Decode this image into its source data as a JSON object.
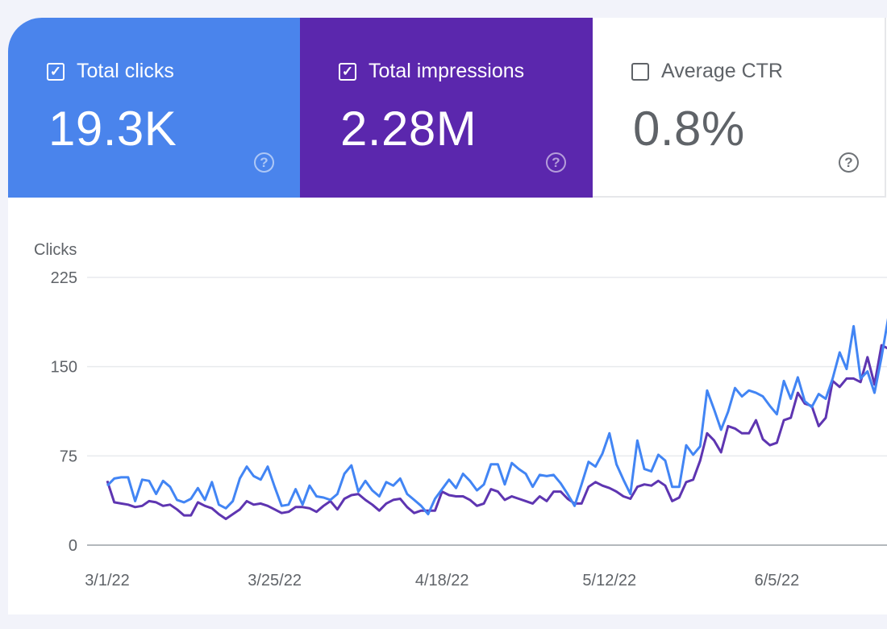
{
  "metrics": [
    {
      "label": "Total clicks",
      "value": "19.3K",
      "checked": true,
      "color": "#4a84ec",
      "icon": "help-icon"
    },
    {
      "label": "Total impressions",
      "value": "2.28M",
      "checked": true,
      "color": "#5b27ad",
      "icon": "help-icon"
    },
    {
      "label": "Average CTR",
      "value": "0.8%",
      "checked": false,
      "color": "#ffffff",
      "icon": "help-icon"
    }
  ],
  "chart_data": {
    "type": "line",
    "ylabel": "Clicks",
    "ylim": [
      0,
      225
    ],
    "yticks": [
      "225",
      "150",
      "75",
      "0"
    ],
    "ytick_values": [
      225,
      150,
      75,
      0
    ],
    "xticks": [
      "3/1/22",
      "3/25/22",
      "4/18/22",
      "5/12/22",
      "6/5/22"
    ],
    "x_start": "2022-03-01",
    "x_interval": "daily",
    "grid": true,
    "series": [
      {
        "metric": "Total clicks",
        "color": "#4285f4",
        "values": [
          50,
          56,
          57,
          57,
          37,
          55,
          54,
          43,
          54,
          49,
          38,
          36,
          39,
          48,
          38,
          53,
          34,
          31,
          37,
          56,
          66,
          58,
          55,
          66,
          49,
          33,
          34,
          47,
          34,
          50,
          41,
          40,
          38,
          43,
          60,
          67,
          45,
          54,
          46,
          41,
          53,
          50,
          56,
          43,
          38,
          33,
          26,
          39,
          47,
          55,
          48,
          60,
          54,
          46,
          51,
          68,
          68,
          51,
          69,
          64,
          60,
          49,
          59,
          58,
          59,
          52,
          43,
          33,
          51,
          70,
          66,
          77,
          94,
          68,
          55,
          43,
          88,
          64,
          62,
          76,
          71,
          49,
          49,
          84,
          76,
          83,
          130,
          114,
          97,
          112,
          132,
          125,
          130,
          128,
          125,
          117,
          110,
          138,
          123,
          141,
          121,
          116,
          127,
          123,
          140,
          162,
          148,
          184,
          140,
          146,
          128,
          158,
          192
        ]
      },
      {
        "metric": "Total impressions",
        "color": "#5e35b1",
        "values": [
          54,
          36,
          35,
          34,
          32,
          33,
          37,
          36,
          33,
          34,
          30,
          25,
          25,
          36,
          33,
          31,
          26,
          22,
          26,
          30,
          37,
          34,
          35,
          33,
          30,
          27,
          28,
          32,
          32,
          31,
          28,
          33,
          37,
          30,
          39,
          42,
          43,
          38,
          34,
          29,
          35,
          38,
          39,
          32,
          27,
          29,
          29,
          29,
          45,
          42,
          41,
          41,
          38,
          33,
          35,
          47,
          45,
          38,
          41,
          39,
          37,
          35,
          41,
          37,
          45,
          45,
          39,
          35,
          35,
          49,
          53,
          50,
          48,
          45,
          41,
          39,
          49,
          51,
          50,
          54,
          50,
          37,
          40,
          53,
          55,
          71,
          94,
          88,
          78,
          100,
          98,
          94,
          94,
          105,
          89,
          84,
          86,
          105,
          107,
          128,
          119,
          117,
          100,
          107,
          138,
          133,
          140,
          140,
          137,
          158,
          135,
          168,
          165
        ]
      }
    ]
  }
}
